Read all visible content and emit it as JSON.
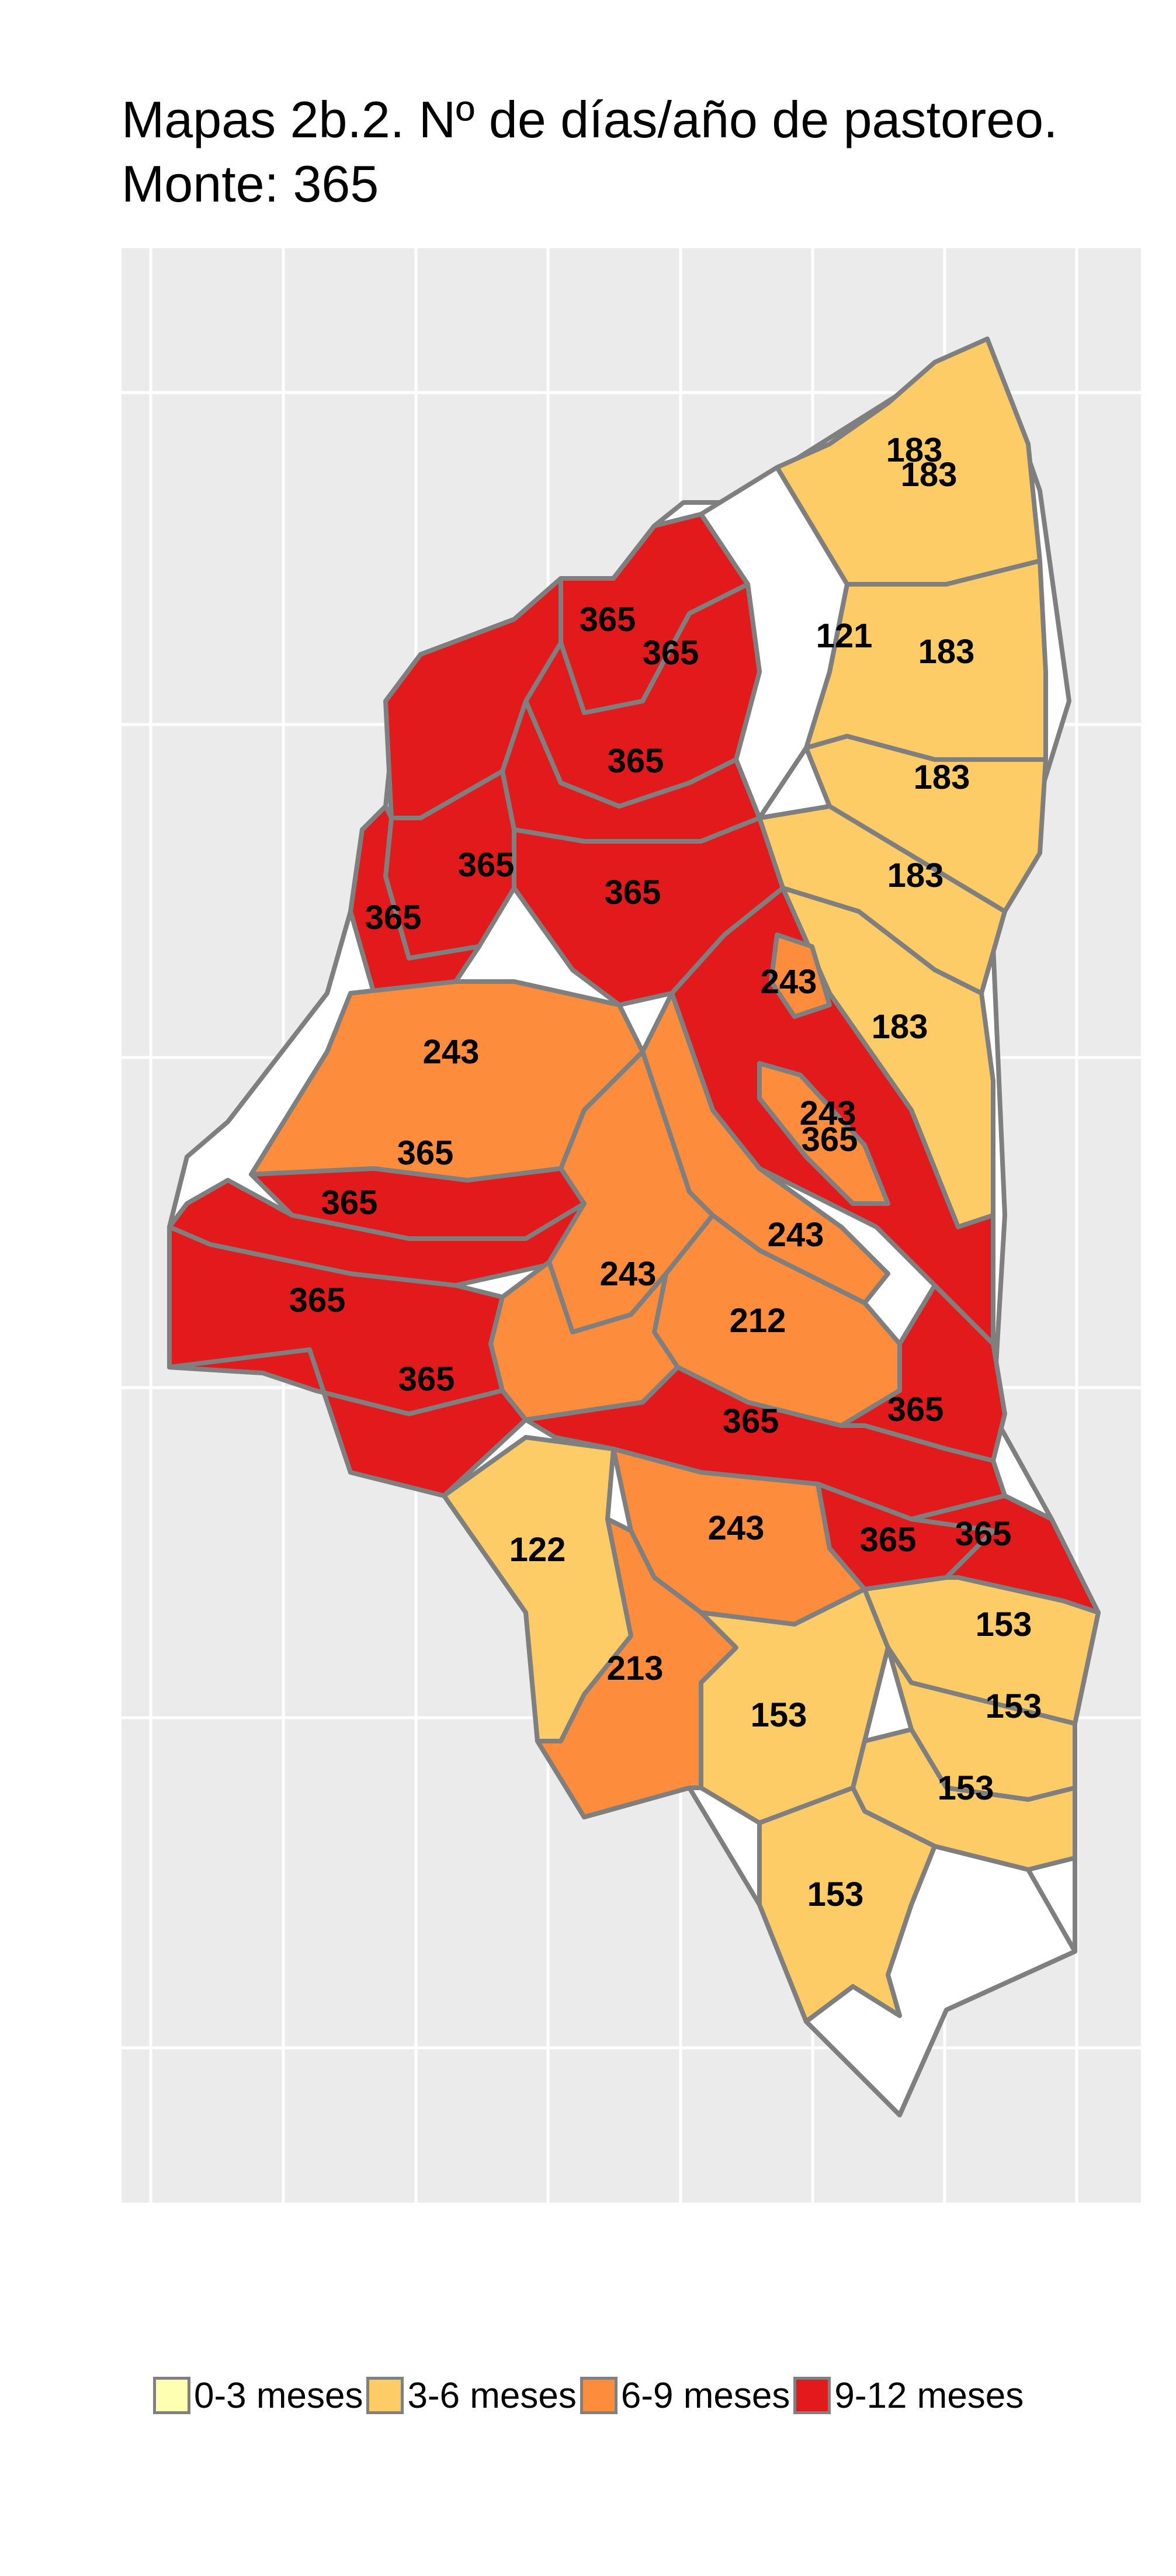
{
  "title": {
    "line1": "Mapas 2b.2. Nº de días/año de pastoreo.",
    "line2": "Monte: 365"
  },
  "colors": {
    "panel": "#ebebeb",
    "grid": "#ffffff",
    "border": "#7f7f7f",
    "c_0_3": "#ffffb2",
    "c_3_6": "#fdcc66",
    "c_6_9": "#fd8d3c",
    "c_9_12": "#e31a1c"
  },
  "legend": [
    {
      "label": "0-3 meses",
      "color": "#ffffb2"
    },
    {
      "label": "3-6 meses",
      "color": "#fdcc66"
    },
    {
      "label": "6-9 meses",
      "color": "#fd8d3c"
    },
    {
      "label": "9-12 meses",
      "color": "#e31a1c"
    }
  ],
  "regions": [
    {
      "label": "183",
      "class": "3-6 meses"
    },
    {
      "label": "183",
      "class": "3-6 meses"
    },
    {
      "label": "121",
      "class": "3-6 meses"
    },
    {
      "label": "183",
      "class": "3-6 meses"
    },
    {
      "label": "365",
      "class": "9-12 meses"
    },
    {
      "label": "365",
      "class": "9-12 meses"
    },
    {
      "label": "365",
      "class": "9-12 meses"
    },
    {
      "label": "183",
      "class": "3-6 meses"
    },
    {
      "label": "365",
      "class": "9-12 meses"
    },
    {
      "label": "183",
      "class": "3-6 meses"
    },
    {
      "label": "365",
      "class": "9-12 meses"
    },
    {
      "label": "365",
      "class": "9-12 meses"
    },
    {
      "label": "243",
      "class": "6-9 meses"
    },
    {
      "label": "183",
      "class": "3-6 meses"
    },
    {
      "label": "243",
      "class": "6-9 meses"
    },
    {
      "label": "243",
      "class": "6-9 meses"
    },
    {
      "label": "365",
      "class": "9-12 meses"
    },
    {
      "label": "365",
      "class": "9-12 meses"
    },
    {
      "label": "365",
      "class": "9-12 meses"
    },
    {
      "label": "243",
      "class": "6-9 meses"
    },
    {
      "label": "243",
      "class": "6-9 meses"
    },
    {
      "label": "365",
      "class": "9-12 meses"
    },
    {
      "label": "212",
      "class": "6-9 meses"
    },
    {
      "label": "365",
      "class": "9-12 meses"
    },
    {
      "label": "365",
      "class": "9-12 meses"
    },
    {
      "label": "365",
      "class": "9-12 meses"
    },
    {
      "label": "122",
      "class": "3-6 meses"
    },
    {
      "label": "243",
      "class": "6-9 meses"
    },
    {
      "label": "365",
      "class": "9-12 meses"
    },
    {
      "label": "365",
      "class": "9-12 meses"
    },
    {
      "label": "213",
      "class": "6-9 meses"
    },
    {
      "label": "153",
      "class": "3-6 meses"
    },
    {
      "label": "153",
      "class": "3-6 meses"
    },
    {
      "label": "153",
      "class": "3-6 meses"
    },
    {
      "label": "153",
      "class": "3-6 meses"
    },
    {
      "label": "153",
      "class": "3-6 meses"
    }
  ]
}
